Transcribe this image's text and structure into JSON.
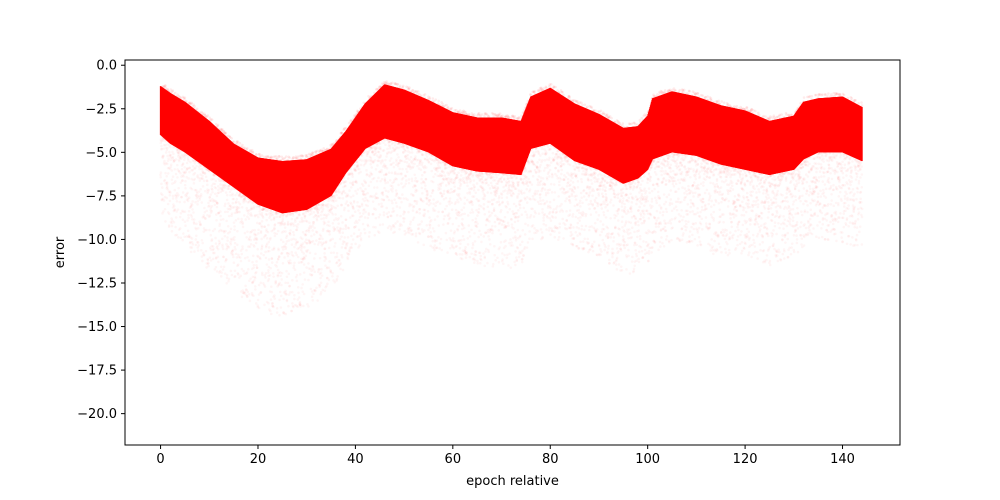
{
  "chart_data": {
    "type": "scatter",
    "title": "",
    "xlabel": "epoch relative",
    "ylabel": "error",
    "xlim": [
      -7.3,
      151.8
    ],
    "ylim": [
      -21.8,
      0.3
    ],
    "x_ticks": [
      0,
      20,
      40,
      60,
      80,
      100,
      120,
      140
    ],
    "x_tick_labels": [
      "0",
      "20",
      "40",
      "60",
      "80",
      "100",
      "120",
      "140"
    ],
    "y_ticks": [
      0.0,
      -2.5,
      -5.0,
      -7.5,
      -10.0,
      -12.5,
      -15.0,
      -17.5,
      -20.0
    ],
    "y_tick_labels": [
      "0.0",
      "−2.5",
      "−5.0",
      "−7.5",
      "−10.0",
      "−12.5",
      "−15.0",
      "−17.5",
      "−20.0"
    ],
    "grid": false,
    "legend": "none",
    "marker_color": "#ff0000",
    "marker_alpha": 0.04,
    "series": [
      {
        "x": [
          0,
          2,
          5,
          10,
          15,
          20,
          25,
          30,
          35,
          38,
          42,
          46,
          50,
          55,
          60,
          65,
          70,
          74,
          76,
          80,
          85,
          90,
          95,
          98,
          100,
          101,
          105,
          110,
          115,
          120,
          125,
          130,
          132,
          135,
          140,
          144
        ],
        "dense_top": [
          -1.2,
          -1.6,
          -2.1,
          -3.2,
          -4.5,
          -5.3,
          -5.5,
          -5.4,
          -4.8,
          -3.8,
          -2.2,
          -1.1,
          -1.4,
          -2.0,
          -2.7,
          -3.0,
          -3.0,
          -3.2,
          -1.8,
          -1.3,
          -2.2,
          -2.8,
          -3.6,
          -3.5,
          -2.9,
          -1.9,
          -1.5,
          -1.8,
          -2.3,
          -2.6,
          -3.2,
          -2.9,
          -2.1,
          -1.9,
          -1.8,
          -2.4
        ],
        "dense_bottom": [
          -4.0,
          -4.5,
          -5.0,
          -6.0,
          -7.0,
          -8.0,
          -8.5,
          -8.3,
          -7.5,
          -6.2,
          -4.8,
          -4.2,
          -4.5,
          -5.0,
          -5.8,
          -6.1,
          -6.2,
          -6.3,
          -4.8,
          -4.5,
          -5.5,
          -6.0,
          -6.8,
          -6.5,
          -6.0,
          -5.4,
          -5.0,
          -5.2,
          -5.7,
          -6.0,
          -6.3,
          -6.0,
          -5.4,
          -5.0,
          -5.0,
          -5.5
        ],
        "faint_bottom": [
          -8.5,
          -9.5,
          -10.5,
          -11.8,
          -13.0,
          -14.0,
          -14.5,
          -14.0,
          -13.0,
          -11.5,
          -10.0,
          -9.5,
          -9.8,
          -10.5,
          -11.0,
          -11.5,
          -11.8,
          -11.5,
          -10.2,
          -9.8,
          -10.5,
          -11.0,
          -12.0,
          -12.0,
          -11.5,
          -10.8,
          -10.2,
          -10.5,
          -11.0,
          -11.0,
          -11.5,
          -11.0,
          -10.5,
          -10.0,
          -10.2,
          -10.5
        ]
      }
    ]
  }
}
